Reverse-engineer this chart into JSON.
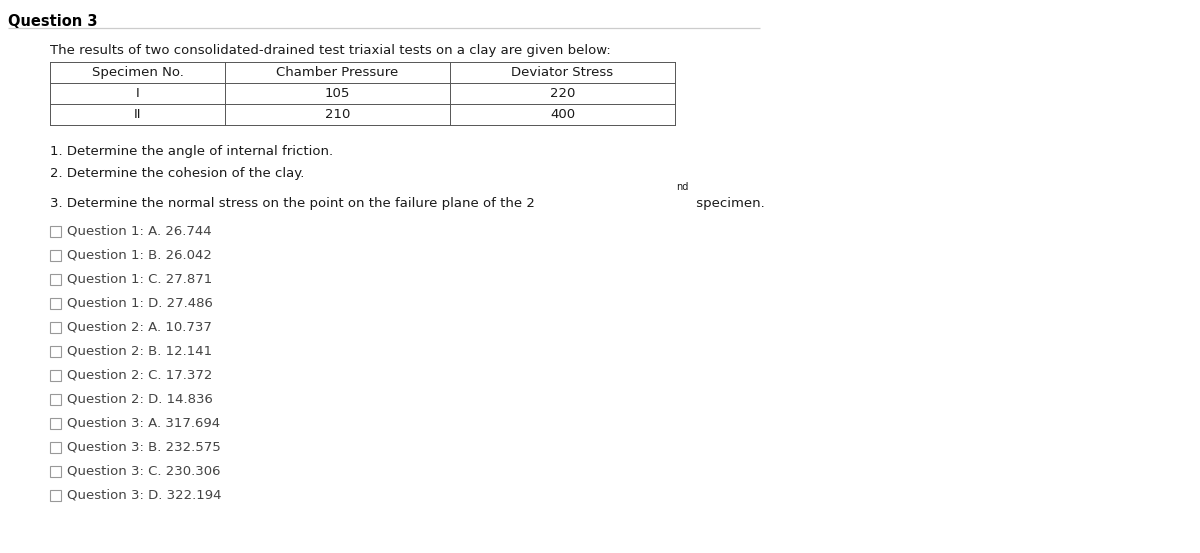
{
  "title": "Question 3",
  "intro_text": "The results of two consolidated-drained test triaxial tests on a clay are given below:",
  "table_headers": [
    "Specimen No.",
    "Chamber Pressure",
    "Deviator Stress"
  ],
  "table_rows": [
    [
      "I",
      "105",
      "220"
    ],
    [
      "II",
      "210",
      "400"
    ]
  ],
  "q1_text": "1. Determine the angle of internal friction.",
  "q2_text": "2. Determine the cohesion of the clay.",
  "q3_prefix": "3. Determine the normal stress on the point on the failure plane of the 2",
  "q3_sup": "nd",
  "q3_suffix": " specimen.",
  "options": [
    "Question 1: A. 26.744",
    "Question 1: B. 26.042",
    "Question 1: C. 27.871",
    "Question 1: D. 27.486",
    "Question 2: A. 10.737",
    "Question 2: B. 12.141",
    "Question 2: C. 17.372",
    "Question 2: D. 14.836",
    "Question 3: A. 317.694",
    "Question 3: B. 232.575",
    "Question 3: C. 230.306",
    "Question 3: D. 322.194"
  ],
  "bg_color": "#ffffff",
  "text_color": "#1a1a1a",
  "title_color": "#000000",
  "option_text_color": "#444444",
  "table_border_color": "#555555",
  "title_line_color": "#cccccc",
  "font_size_title": 10.5,
  "font_size_body": 9.5,
  "font_size_option": 9.5,
  "font_size_sup": 7.0
}
